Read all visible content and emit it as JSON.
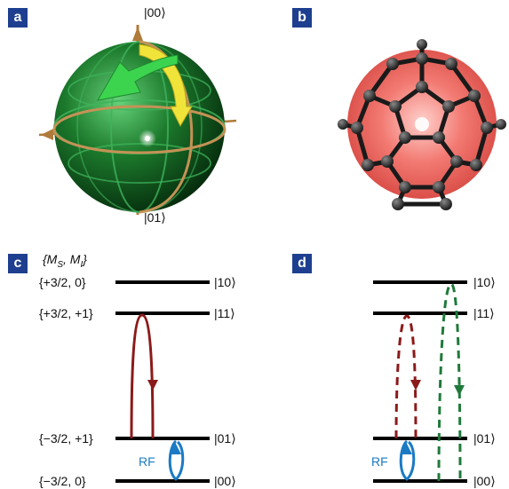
{
  "panels": {
    "a": {
      "label": "a",
      "ket_top": "|00⟩",
      "ket_bottom": "|01⟩"
    },
    "b": {
      "label": "b"
    },
    "c": {
      "label": "c",
      "header": "{M",
      "header_sub_s": "S",
      "header_mid": ", M",
      "header_sub_i": "I",
      "header_end": "}",
      "levels": [
        {
          "left": "{+3/2, 0}",
          "right": "|10⟩"
        },
        {
          "left": "{+3/2, +1}",
          "right": "|11⟩"
        },
        {
          "left": "{−3/2, +1}",
          "right": "|01⟩"
        },
        {
          "left": "{−3/2, 0}",
          "right": "|00⟩"
        }
      ],
      "rf_label": "RF"
    },
    "d": {
      "label": "d",
      "levels": [
        {
          "right": "|10⟩"
        },
        {
          "right": "|11⟩"
        },
        {
          "right": "|01⟩"
        },
        {
          "right": "|00⟩"
        }
      ],
      "rf_label": "RF"
    }
  },
  "colors": {
    "panel_label_bg": "#1e3f8f",
    "mw_transition": "#8b1a1a",
    "rf_transition": "#1a7ac4",
    "green_transition": "#1f7a3a",
    "sphere": "#1c7a2c",
    "cage_inner": "#e8403a"
  }
}
